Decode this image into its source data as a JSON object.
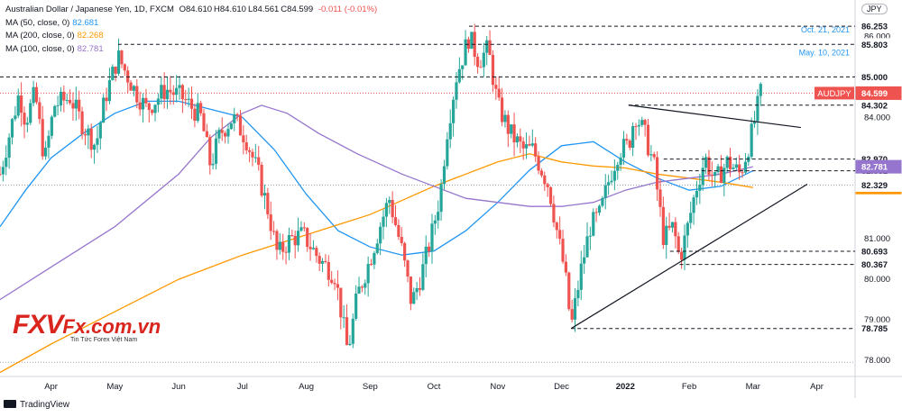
{
  "header": {
    "symbol_line": "Australian Dollar / Japanese Yen, 1D, FXCM",
    "ohlc": [
      {
        "k": "O",
        "v": "84.610"
      },
      {
        "k": "H",
        "v": "84.610"
      },
      {
        "k": "L",
        "v": "84.561"
      },
      {
        "k": "C",
        "v": "84.599"
      }
    ],
    "change": "-0.011 (-0.01%)",
    "change_color": "#ef5350",
    "currency_button": "JPY"
  },
  "indicators": [
    {
      "label": "MA (50, close, 0)",
      "value": "82.681",
      "color": "#2196f3"
    },
    {
      "label": "MA (200, close, 0)",
      "value": "82.268",
      "color": "#ff9800"
    },
    {
      "label": "MA (100, close, 0)",
      "value": "82.781",
      "color": "#9575cd"
    }
  ],
  "logo": {
    "brand": "FXV",
    "domain": "Fx.com.vn",
    "tagline": "Tin Tức Forex Việt Nam"
  },
  "footer": {
    "brand": "TradingView"
  },
  "chart_data": {
    "type": "candlestick",
    "title": "Australian Dollar / Japanese Yen, 1D, FXCM",
    "ylim": [
      77.6,
      86.9
    ],
    "y_ticks": [
      78.0,
      79.0,
      80.0,
      81.0,
      84.0,
      86.0
    ],
    "y_tick_labels": [
      "78.000",
      "79.000",
      "80.000",
      "81.000",
      "84.000",
      "86.000"
    ],
    "x_ticks": [
      {
        "label": "Apr",
        "x": 2.0
      },
      {
        "label": "May",
        "x": 3.0
      },
      {
        "label": "Jun",
        "x": 4.0
      },
      {
        "label": "Jul",
        "x": 5.0
      },
      {
        "label": "Aug",
        "x": 6.0
      },
      {
        "label": "Sep",
        "x": 7.0
      },
      {
        "label": "Oct",
        "x": 8.0
      },
      {
        "label": "Nov",
        "x": 9.0
      },
      {
        "label": "Dec",
        "x": 10.0
      },
      {
        "label": "2022",
        "x": 11.0
      },
      {
        "label": "Feb",
        "x": 12.0
      },
      {
        "label": "Mar",
        "x": 13.0
      },
      {
        "label": "Apr",
        "x": 14.0
      }
    ],
    "x_range": [
      1.2,
      14.6
    ],
    "price_path": [
      [
        1.2,
        82.6
      ],
      [
        1.35,
        83.6
      ],
      [
        1.5,
        84.6
      ],
      [
        1.6,
        83.9
      ],
      [
        1.75,
        84.6
      ],
      [
        1.9,
        82.9
      ],
      [
        2.05,
        84.3
      ],
      [
        2.3,
        84.5
      ],
      [
        2.5,
        83.8
      ],
      [
        2.7,
        83.3
      ],
      [
        2.85,
        84.5
      ],
      [
        3.05,
        85.5
      ],
      [
        3.3,
        84.7
      ],
      [
        3.5,
        84.2
      ],
      [
        3.8,
        84.7
      ],
      [
        4.05,
        84.5
      ],
      [
        4.35,
        84.0
      ],
      [
        4.5,
        82.8
      ],
      [
        4.65,
        83.6
      ],
      [
        4.85,
        84.0
      ],
      [
        5.05,
        83.5
      ],
      [
        5.25,
        82.6
      ],
      [
        5.4,
        81.7
      ],
      [
        5.55,
        80.6
      ],
      [
        5.75,
        81.0
      ],
      [
        5.95,
        81.1
      ],
      [
        6.2,
        80.5
      ],
      [
        6.45,
        80.1
      ],
      [
        6.65,
        78.2
      ],
      [
        6.8,
        79.6
      ],
      [
        7.0,
        80.5
      ],
      [
        7.15,
        81.3
      ],
      [
        7.3,
        82.0
      ],
      [
        7.5,
        80.7
      ],
      [
        7.65,
        79.4
      ],
      [
        7.8,
        80.1
      ],
      [
        7.95,
        81.0
      ],
      [
        8.1,
        82.1
      ],
      [
        8.2,
        83.6
      ],
      [
        8.35,
        85.0
      ],
      [
        8.55,
        86.0
      ],
      [
        8.7,
        85.4
      ],
      [
        8.85,
        85.7
      ],
      [
        9.0,
        84.3
      ],
      [
        9.2,
        83.6
      ],
      [
        9.4,
        83.2
      ],
      [
        9.55,
        83.2
      ],
      [
        9.8,
        82.3
      ],
      [
        9.95,
        81.0
      ],
      [
        10.05,
        80.2
      ],
      [
        10.15,
        78.8
      ],
      [
        10.3,
        80.2
      ],
      [
        10.45,
        81.3
      ],
      [
        10.6,
        81.6
      ],
      [
        10.75,
        82.5
      ],
      [
        10.9,
        83.2
      ],
      [
        11.05,
        83.3
      ],
      [
        11.15,
        84.1
      ],
      [
        11.3,
        83.6
      ],
      [
        11.45,
        82.8
      ],
      [
        11.6,
        81.0
      ],
      [
        11.75,
        81.3
      ],
      [
        11.85,
        80.5
      ],
      [
        11.95,
        81.1
      ],
      [
        12.1,
        82.2
      ],
      [
        12.25,
        83.0
      ],
      [
        12.4,
        82.4
      ],
      [
        12.6,
        82.9
      ],
      [
        12.8,
        82.6
      ],
      [
        12.95,
        83.4
      ],
      [
        13.05,
        84.1
      ],
      [
        13.12,
        84.6
      ]
    ],
    "moving_averages": [
      {
        "name": "MA (50, close, 0)",
        "color": "#2196f3",
        "points": [
          [
            1.2,
            81.3
          ],
          [
            1.6,
            82.2
          ],
          [
            2.0,
            83.0
          ],
          [
            2.5,
            83.6
          ],
          [
            3.0,
            84.1
          ],
          [
            3.5,
            84.4
          ],
          [
            4.0,
            84.4
          ],
          [
            4.5,
            84.2
          ],
          [
            5.0,
            84.0
          ],
          [
            5.5,
            83.2
          ],
          [
            6.0,
            82.1
          ],
          [
            6.5,
            81.2
          ],
          [
            7.0,
            80.8
          ],
          [
            7.5,
            80.6
          ],
          [
            8.0,
            80.7
          ],
          [
            8.5,
            81.2
          ],
          [
            9.0,
            81.9
          ],
          [
            9.5,
            82.7
          ],
          [
            10.0,
            83.3
          ],
          [
            10.5,
            83.4
          ],
          [
            11.0,
            82.9
          ],
          [
            11.5,
            82.5
          ],
          [
            12.0,
            82.2
          ],
          [
            12.5,
            82.3
          ],
          [
            13.0,
            82.681
          ]
        ]
      },
      {
        "name": "MA (200, close, 0)",
        "color": "#ff9800",
        "points": [
          [
            1.2,
            77.7
          ],
          [
            2.0,
            78.4
          ],
          [
            3.0,
            79.2
          ],
          [
            4.0,
            80.0
          ],
          [
            5.0,
            80.6
          ],
          [
            6.0,
            81.1
          ],
          [
            7.0,
            81.6
          ],
          [
            8.0,
            82.3
          ],
          [
            8.5,
            82.6
          ],
          [
            9.0,
            82.9
          ],
          [
            9.5,
            83.1
          ],
          [
            10.0,
            82.9
          ],
          [
            10.5,
            82.8
          ],
          [
            11.0,
            82.75
          ],
          [
            11.5,
            82.6
          ],
          [
            12.0,
            82.5
          ],
          [
            12.5,
            82.4
          ],
          [
            13.0,
            82.268
          ]
        ]
      },
      {
        "name": "MA (100, close, 0)",
        "color": "#9575cd",
        "points": [
          [
            1.2,
            79.5
          ],
          [
            2.0,
            80.3
          ],
          [
            3.0,
            81.3
          ],
          [
            4.0,
            82.6
          ],
          [
            4.5,
            83.5
          ],
          [
            5.0,
            84.1
          ],
          [
            5.3,
            84.3
          ],
          [
            5.7,
            84.1
          ],
          [
            6.2,
            83.6
          ],
          [
            6.8,
            83.1
          ],
          [
            7.5,
            82.6
          ],
          [
            8.0,
            82.3
          ],
          [
            8.5,
            82.0
          ],
          [
            9.0,
            81.9
          ],
          [
            9.5,
            81.8
          ],
          [
            10.0,
            81.8
          ],
          [
            10.5,
            81.9
          ],
          [
            11.0,
            82.2
          ],
          [
            11.5,
            82.4
          ],
          [
            12.0,
            82.5
          ],
          [
            12.5,
            82.6
          ],
          [
            13.0,
            82.781
          ]
        ]
      }
    ],
    "trendlines": [
      {
        "from": [
          11.05,
          84.302
        ],
        "to": [
          13.75,
          83.75
        ]
      },
      {
        "from": [
          10.15,
          78.785
        ],
        "to": [
          13.85,
          82.35
        ]
      }
    ],
    "levels": [
      {
        "price": 86.253,
        "label": "86.253",
        "color": "#131722",
        "note": "Oct. 21, 2021",
        "note_color": "#2196f3",
        "line_from": 8.55
      },
      {
        "price": 85.803,
        "label": "85.803",
        "color": "#131722",
        "note": "May. 10, 2021",
        "note_color": "#2196f3",
        "line_from": 3.05
      },
      {
        "price": 85.0,
        "label": "85.000",
        "color": "#131722",
        "line_from": 1.2
      },
      {
        "price": 84.302,
        "label": "84.302",
        "color": "#131722",
        "line_from": 11.05
      },
      {
        "price": 82.97,
        "label": "82.970",
        "color": "#131722",
        "line_from": 11.6
      },
      {
        "price": 82.681,
        "label": "82.681",
        "color": "#131722",
        "line_from": 11.6
      },
      {
        "price": 80.693,
        "label": "80.693",
        "color": "#131722",
        "line_from": 11.7
      },
      {
        "price": 80.367,
        "label": "80.367",
        "color": "#131722",
        "line_from": 11.85
      },
      {
        "price": 78.785,
        "label": "78.785",
        "color": "#131722",
        "line_from": 10.15
      }
    ],
    "price_badges": [
      {
        "price": 84.599,
        "label": "84.599",
        "tag": "AUDJPY",
        "bg": "#ef5350",
        "fg": "#ffffff"
      },
      {
        "price": 82.781,
        "label": "82.781",
        "bg": "#9575cd",
        "fg": "#ffffff"
      },
      {
        "price": 82.268,
        "label": "82.268",
        "bg": "#ff9800",
        "fg": "#ffffff"
      },
      {
        "price": 82.329,
        "label": "82.329",
        "bg": "#ffffff",
        "fg": "#131722"
      }
    ],
    "reference_lines": [
      {
        "price": 84.599,
        "color": "#ef5350"
      },
      {
        "price": 82.329,
        "color": "#9ea3ab"
      },
      {
        "price": 77.95,
        "color": "#9ea3ab"
      }
    ],
    "up_color": "#26a69a",
    "down_color": "#ef5350"
  }
}
